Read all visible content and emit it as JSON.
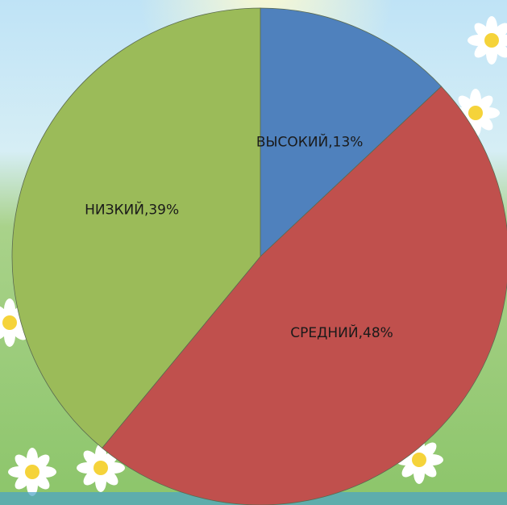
{
  "chart_data": {
    "type": "pie",
    "values": [
      13,
      48,
      39
    ],
    "value_labels": [
      "ВЫСОКИЙ,13%",
      "СРЕДНИЙ,48%",
      "НИЗКИЙ,39%"
    ],
    "colors": [
      "#4f81bd",
      "#c0504d",
      "#9bbb59"
    ]
  }
}
